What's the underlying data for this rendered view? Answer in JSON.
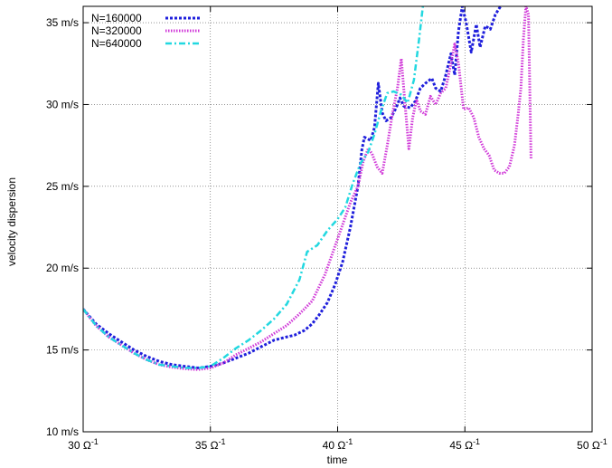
{
  "chart_data": {
    "type": "line",
    "title": "",
    "xlabel": "time",
    "ylabel": "velocity dispersion",
    "xlim": [
      30,
      50
    ],
    "ylim": [
      10,
      36
    ],
    "grid": true,
    "legend_position": "top-left",
    "x_ticks": [
      {
        "value": 30,
        "label": "30 Ω",
        "sup": "-1"
      },
      {
        "value": 35,
        "label": "35 Ω",
        "sup": "-1"
      },
      {
        "value": 40,
        "label": "40 Ω",
        "sup": "-1"
      },
      {
        "value": 45,
        "label": "45 Ω",
        "sup": "-1"
      },
      {
        "value": 50,
        "label": "50 Ω",
        "sup": "-1"
      }
    ],
    "y_ticks": [
      {
        "value": 10,
        "label": "10 m/s"
      },
      {
        "value": 15,
        "label": "15 m/s"
      },
      {
        "value": 20,
        "label": "20 m/s"
      },
      {
        "value": 25,
        "label": "25 m/s"
      },
      {
        "value": 30,
        "label": "30 m/s"
      },
      {
        "value": 35,
        "label": "35 m/s"
      }
    ],
    "series": [
      {
        "name": "N=160000",
        "color": "#1f1fdc",
        "dash": "3,2",
        "width": 3,
        "points": [
          [
            30,
            17.5
          ],
          [
            30.5,
            16.6
          ],
          [
            31,
            16.0
          ],
          [
            31.5,
            15.5
          ],
          [
            32,
            15.0
          ],
          [
            32.5,
            14.6
          ],
          [
            33,
            14.3
          ],
          [
            33.5,
            14.1
          ],
          [
            34,
            14.0
          ],
          [
            34.5,
            13.9
          ],
          [
            35,
            14.0
          ],
          [
            35.5,
            14.2
          ],
          [
            36,
            14.5
          ],
          [
            36.5,
            14.8
          ],
          [
            37,
            15.2
          ],
          [
            37.5,
            15.6
          ],
          [
            38,
            15.8
          ],
          [
            38.3,
            15.9
          ],
          [
            38.7,
            16.2
          ],
          [
            39,
            16.6
          ],
          [
            39.3,
            17.2
          ],
          [
            39.6,
            17.9
          ],
          [
            39.9,
            19.0
          ],
          [
            40.2,
            20.4
          ],
          [
            40.5,
            22.5
          ],
          [
            40.8,
            25.0
          ],
          [
            40.95,
            27.2
          ],
          [
            41.05,
            28.0
          ],
          [
            41.3,
            27.8
          ],
          [
            41.45,
            28.6
          ],
          [
            41.6,
            31.3
          ],
          [
            41.75,
            29.5
          ],
          [
            41.9,
            29.0
          ],
          [
            42.1,
            29.2
          ],
          [
            42.3,
            29.8
          ],
          [
            42.45,
            30.4
          ],
          [
            42.6,
            29.9
          ],
          [
            42.85,
            29.8
          ],
          [
            43.05,
            30.2
          ],
          [
            43.25,
            31.0
          ],
          [
            43.45,
            31.3
          ],
          [
            43.7,
            31.6
          ],
          [
            43.85,
            31.0
          ],
          [
            44.05,
            30.8
          ],
          [
            44.25,
            31.8
          ],
          [
            44.45,
            33.1
          ],
          [
            44.6,
            31.8
          ],
          [
            44.75,
            34.5
          ],
          [
            44.9,
            36.0
          ],
          [
            45.05,
            35.0
          ],
          [
            45.25,
            33.2
          ],
          [
            45.45,
            34.9
          ],
          [
            45.6,
            33.5
          ],
          [
            45.8,
            34.8
          ],
          [
            46.0,
            34.6
          ],
          [
            46.2,
            35.5
          ],
          [
            46.4,
            36.0
          ]
        ]
      },
      {
        "name": "N=320000",
        "color": "#d038d8",
        "dash": "1.5,1.5",
        "width": 3,
        "points": [
          [
            30,
            17.5
          ],
          [
            30.5,
            16.5
          ],
          [
            31,
            15.8
          ],
          [
            31.5,
            15.3
          ],
          [
            32,
            14.8
          ],
          [
            32.5,
            14.4
          ],
          [
            33,
            14.1
          ],
          [
            33.5,
            13.95
          ],
          [
            34,
            13.85
          ],
          [
            34.5,
            13.8
          ],
          [
            35,
            13.9
          ],
          [
            35.5,
            14.2
          ],
          [
            36,
            14.7
          ],
          [
            36.5,
            15.1
          ],
          [
            37,
            15.5
          ],
          [
            37.5,
            16.0
          ],
          [
            38,
            16.5
          ],
          [
            38.5,
            17.2
          ],
          [
            39,
            18.0
          ],
          [
            39.5,
            19.6
          ],
          [
            40,
            21.8
          ],
          [
            40.5,
            24.0
          ],
          [
            40.8,
            25.0
          ],
          [
            41.0,
            26.5
          ],
          [
            41.2,
            27.3
          ],
          [
            41.35,
            27.0
          ],
          [
            41.55,
            26.2
          ],
          [
            41.75,
            25.8
          ],
          [
            41.95,
            27.5
          ],
          [
            42.15,
            29.4
          ],
          [
            42.35,
            31.0
          ],
          [
            42.5,
            32.8
          ],
          [
            42.65,
            30.0
          ],
          [
            42.8,
            27.3
          ],
          [
            42.95,
            29.2
          ],
          [
            43.1,
            30.3
          ],
          [
            43.25,
            29.6
          ],
          [
            43.45,
            29.4
          ],
          [
            43.65,
            30.5
          ],
          [
            43.85,
            30.0
          ],
          [
            44.05,
            30.7
          ],
          [
            44.25,
            31.0
          ],
          [
            44.45,
            32.5
          ],
          [
            44.6,
            33.7
          ],
          [
            44.75,
            32.5
          ],
          [
            44.95,
            29.7
          ],
          [
            45.15,
            29.8
          ],
          [
            45.35,
            29.2
          ],
          [
            45.55,
            28.0
          ],
          [
            45.75,
            27.3
          ],
          [
            45.95,
            26.9
          ],
          [
            46.15,
            26.0
          ],
          [
            46.35,
            25.8
          ],
          [
            46.55,
            25.8
          ],
          [
            46.75,
            26.2
          ],
          [
            46.95,
            27.5
          ],
          [
            47.1,
            29.5
          ],
          [
            47.2,
            31.0
          ],
          [
            47.3,
            34.0
          ],
          [
            47.4,
            36.0
          ],
          [
            47.5,
            35.5
          ],
          [
            47.6,
            26.7
          ]
        ]
      },
      {
        "name": "N=640000",
        "color": "#22d8e0",
        "dash": "7,3,2,3",
        "width": 2.5,
        "points": [
          [
            30,
            17.5
          ],
          [
            30.5,
            16.5
          ],
          [
            31,
            15.8
          ],
          [
            31.5,
            15.3
          ],
          [
            32,
            14.8
          ],
          [
            32.5,
            14.4
          ],
          [
            33,
            14.1
          ],
          [
            33.5,
            14.0
          ],
          [
            34,
            13.9
          ],
          [
            34.5,
            13.9
          ],
          [
            35,
            14.0
          ],
          [
            35.5,
            14.5
          ],
          [
            36,
            15.1
          ],
          [
            36.5,
            15.6
          ],
          [
            37,
            16.2
          ],
          [
            37.5,
            16.9
          ],
          [
            38,
            17.8
          ],
          [
            38.5,
            19.3
          ],
          [
            38.8,
            21.0
          ],
          [
            39.2,
            21.4
          ],
          [
            39.6,
            22.3
          ],
          [
            40.0,
            23.0
          ],
          [
            40.3,
            23.7
          ],
          [
            40.6,
            25.2
          ],
          [
            40.9,
            26.4
          ],
          [
            41.2,
            27.1
          ],
          [
            41.45,
            28.2
          ],
          [
            41.7,
            29.6
          ],
          [
            41.95,
            30.7
          ],
          [
            42.2,
            30.8
          ],
          [
            42.5,
            30.6
          ],
          [
            42.75,
            30.1
          ],
          [
            43.0,
            31.5
          ],
          [
            43.2,
            34.0
          ],
          [
            43.35,
            36.0
          ]
        ]
      }
    ]
  }
}
